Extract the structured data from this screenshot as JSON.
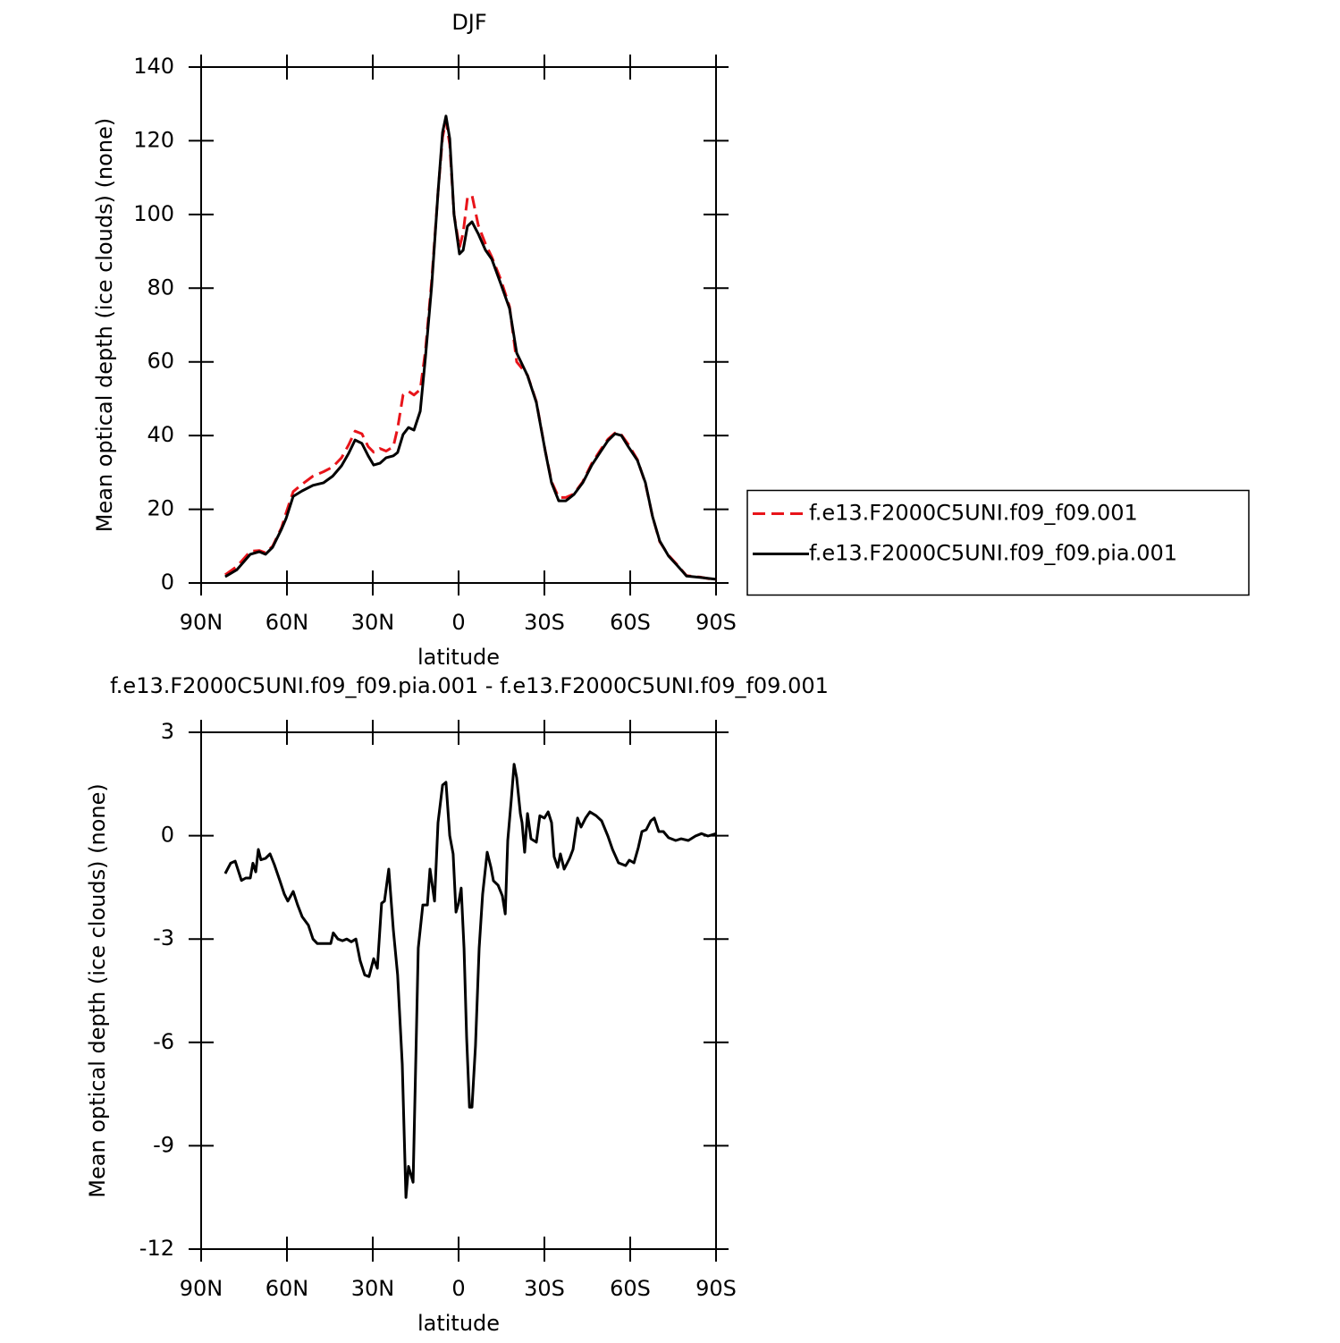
{
  "chart_data": [
    {
      "type": "line",
      "title": "DJF",
      "xlabel": "latitude",
      "ylabel": "Mean optical depth (ice clouds) (none)",
      "xlim": [
        90,
        -90
      ],
      "xticks": [
        {
          "value": 90,
          "label": "90N"
        },
        {
          "value": 60,
          "label": "60N"
        },
        {
          "value": 30,
          "label": "30N"
        },
        0,
        {
          "value": -30,
          "label": "30S"
        },
        {
          "value": -60,
          "label": "60S"
        },
        {
          "value": -90,
          "label": "90S"
        }
      ],
      "ylim": [
        0,
        140
      ],
      "yticks": [
        0,
        20,
        40,
        60,
        80,
        100,
        120,
        140
      ],
      "legend": "outside-right",
      "x": [
        81.6,
        77.5,
        72.8,
        69.7,
        67.5,
        65,
        61.9,
        60.3,
        57.8,
        54.7,
        50.9,
        47.2,
        44,
        40.9,
        38.4,
        36.2,
        33.8,
        31.6,
        29.7,
        27.5,
        25.3,
        22.8,
        21.3,
        19.4,
        17.5,
        15.6,
        13.4,
        11.6,
        9.4,
        7.2,
        5.6,
        4.4,
        3.1,
        1.6,
        -0.3,
        -1.6,
        -3.1,
        -4.7,
        -6.9,
        -9.4,
        -11.6,
        -14.7,
        -17.8,
        -20.3,
        -24.1,
        -27.2,
        -30.3,
        -32.5,
        -35,
        -37.5,
        -40.3,
        -43.4,
        -46.6,
        -49.7,
        -52.2,
        -54.7,
        -56.9,
        -59.4,
        -62.5,
        -65.3,
        -67.8,
        -70.3,
        -73.4,
        -76.6,
        -79.7,
        -84.4,
        -90
      ],
      "series": [
        {
          "name": "f.e13.F2000C5UNI.f09_f09.001",
          "color": "#e8141a",
          "style": "dashed",
          "values": [
            2.2,
            4.5,
            8.6,
            8.8,
            8.2,
            10,
            15,
            19,
            24.8,
            26.8,
            29,
            30.2,
            31.5,
            34,
            37.5,
            41.2,
            40.5,
            37,
            35.5,
            36.5,
            35.8,
            37,
            42,
            51,
            52,
            51,
            52.5,
            63,
            82,
            106,
            121,
            125.5,
            119,
            100,
            91,
            95,
            104.5,
            105.2,
            97,
            92,
            88.5,
            82.5,
            75,
            60,
            56.4,
            49.2,
            35.8,
            27.5,
            23.2,
            23.2,
            24.2,
            27.5,
            32.5,
            36.2,
            39,
            40.7,
            40.2,
            37.5,
            33.5,
            27,
            18,
            11.2,
            7.5,
            4.8,
            2,
            1.6,
            0.8
          ]
        },
        {
          "name": "f.e13.F2000C5UNI.f09_f09.pia.001",
          "color": "#000000",
          "style": "solid",
          "values": [
            1.7,
            3.6,
            7.8,
            8.5,
            7.8,
            9.7,
            14.6,
            17.5,
            23.5,
            25,
            26.5,
            27.2,
            29,
            31.8,
            35.2,
            38.8,
            37.9,
            34.5,
            32,
            32.5,
            34,
            34.5,
            35.4,
            40.3,
            42.2,
            41.5,
            46.6,
            61.2,
            80.6,
            106,
            122.3,
            126.7,
            120.6,
            100,
            89.3,
            90.3,
            96.8,
            98,
            94.7,
            90.3,
            87.9,
            81.3,
            74.5,
            62.4,
            56.3,
            49,
            35.7,
            27.2,
            22.3,
            22.3,
            24,
            27.2,
            32,
            35.7,
            38.6,
            40.5,
            40,
            36.9,
            33.3,
            27.2,
            18,
            11.4,
            7.3,
            4.6,
            1.9,
            1.5,
            1
          ]
        }
      ]
    },
    {
      "type": "line",
      "title": "f.e13.F2000C5UNI.f09_f09.pia.001 - f.e13.F2000C5UNI.f09_f09.001",
      "xlabel": "latitude",
      "ylabel": "Mean optical depth (ice clouds) (none)",
      "xlim": [
        90,
        -90
      ],
      "xticks": [
        {
          "value": 90,
          "label": "90N"
        },
        {
          "value": 60,
          "label": "60N"
        },
        {
          "value": 30,
          "label": "30N"
        },
        0,
        {
          "value": -30,
          "label": "30S"
        },
        {
          "value": -60,
          "label": "60S"
        },
        {
          "value": -90,
          "label": "90S"
        }
      ],
      "ylim": [
        -12,
        3
      ],
      "yticks": [
        -12,
        -9,
        -6,
        -3,
        0,
        3
      ],
      "color": "#000000",
      "x": [
        81.6,
        79.7,
        78.1,
        75.9,
        74.4,
        72.8,
        71.9,
        70.9,
        70,
        69.1,
        67.5,
        65.9,
        64.4,
        62.5,
        60.9,
        59.7,
        57.8,
        56.3,
        54.7,
        52.5,
        50.9,
        49.4,
        47.2,
        44.7,
        43.8,
        42.2,
        40.6,
        39.1,
        37.5,
        35.9,
        34.4,
        32.8,
        31.3,
        29.7,
        28.4,
        26.9,
        25.9,
        24.4,
        22.8,
        21.3,
        19.7,
        18.4,
        17.5,
        15.9,
        14.1,
        12.5,
        10.9,
        10,
        8.4,
        7.2,
        5.6,
        4.4,
        3.1,
        1.9,
        0.9,
        0,
        -0.9,
        -1.9,
        -2.8,
        -3.8,
        -4.7,
        -5.9,
        -7.2,
        -8.4,
        -10,
        -11.3,
        -12.2,
        -13.8,
        -15.3,
        -16.3,
        -17.2,
        -18.4,
        -19.4,
        -20.3,
        -21.6,
        -22.2,
        -23.1,
        -24.1,
        -25.3,
        -27.2,
        -28.4,
        -30,
        -31.3,
        -32.5,
        -33.4,
        -34.7,
        -35.6,
        -36.9,
        -38.8,
        -40,
        -41.6,
        -42.8,
        -44.4,
        -45.9,
        -48.1,
        -50,
        -52.2,
        -53.8,
        -55.9,
        -58.4,
        -59.7,
        -61.3,
        -62.8,
        -64.1,
        -65.6,
        -67.2,
        -68.4,
        -70,
        -71.6,
        -73.4,
        -75.9,
        -77.8,
        -80.3,
        -82.8,
        -84.9,
        -87.2,
        -90
      ],
      "values": [
        -1.1,
        -0.8,
        -0.74,
        -1.3,
        -1.23,
        -1.23,
        -0.8,
        -1.05,
        -0.4,
        -0.7,
        -0.66,
        -0.53,
        -0.84,
        -1.3,
        -1.7,
        -1.9,
        -1.62,
        -2,
        -2.35,
        -2.6,
        -3,
        -3.13,
        -3.13,
        -3.13,
        -2.82,
        -3,
        -3.05,
        -3,
        -3.08,
        -3,
        -3.63,
        -4.04,
        -4.09,
        -3.57,
        -3.85,
        -1.96,
        -1.9,
        -0.97,
        -2.73,
        -4.04,
        -6.64,
        -10.5,
        -9.6,
        -10.06,
        -3.26,
        -2.01,
        -2.01,
        -0.97,
        -1.9,
        0.38,
        1.47,
        1.55,
        0,
        -0.53,
        -2.22,
        -1.96,
        -1.52,
        -3.27,
        -5.86,
        -7.88,
        -7.88,
        -6.1,
        -3.27,
        -1.7,
        -0.48,
        -0.92,
        -1.31,
        -1.44,
        -1.75,
        -2.27,
        -0.14,
        1.03,
        2.07,
        1.68,
        0.64,
        0.38,
        -0.48,
        0.64,
        -0.09,
        -0.19,
        0.58,
        0.51,
        0.69,
        0.38,
        -0.61,
        -0.92,
        -0.53,
        -0.97,
        -0.66,
        -0.4,
        0.51,
        0.25,
        0.51,
        0.69,
        0.58,
        0.43,
        -0.01,
        -0.4,
        -0.79,
        -0.87,
        -0.71,
        -0.79,
        -0.35,
        0.12,
        0.17,
        0.43,
        0.51,
        0.12,
        0.12,
        -0.06,
        -0.14,
        -0.09,
        -0.14,
        -0.01,
        0.06,
        -0.01,
        0.06
      ]
    }
  ]
}
